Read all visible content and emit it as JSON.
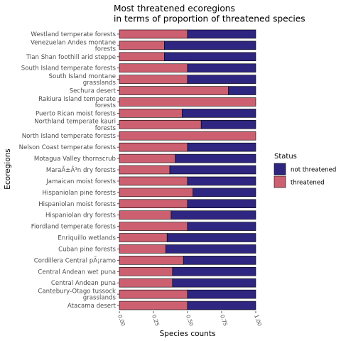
{
  "chart_data": {
    "type": "bar",
    "orientation": "horizontal",
    "stacked": true,
    "title": "Most threatened ecoregions\nin terms of proportion of threatened species",
    "xlabel": "Species counts",
    "ylabel": "Ecoregions",
    "xlim": [
      0,
      1
    ],
    "xticks": [
      "0.00",
      "0.25",
      "0.50",
      "0.75",
      "1.00"
    ],
    "grid": false,
    "legend": {
      "title": "Status",
      "placement": "right"
    },
    "categories": [
      "Westland temperate forests",
      "Venezuelan Andes montane\nforests",
      "Tian Shan foothill arid steppe",
      "South Island temperate forests",
      "South Island montane\ngrasslands",
      "Sechura desert",
      "Rakiura Island temperate\nforests",
      "Puerto Rican moist forests",
      "Northland temperate kauri\nforests",
      "North Island temperate forests",
      "Nelson Coast temperate forests",
      "Motagua Valley thornscrub",
      "MaraÃ±Ã³n dry forests",
      "Jamaican moist forests",
      "Hispaniolan pine forests",
      "Hispaniolan moist forests",
      "Hispaniolan dry forests",
      "Fiordland temperate forests",
      "Enriquillo wetlands",
      "Cuban pine forests",
      "Cordillera Central pÃ¡ramo",
      "Central Andean wet puna",
      "Central Andean puna",
      "Cantebury-Otago tussock\ngrasslands",
      "Atacama desert"
    ],
    "series": [
      {
        "name": "threatened",
        "color": "#cd6070",
        "values": [
          0.5,
          0.33,
          0.33,
          0.5,
          0.5,
          0.8,
          1.0,
          0.46,
          0.6,
          1.0,
          0.5,
          0.41,
          0.37,
          0.5,
          0.54,
          0.5,
          0.38,
          0.5,
          0.35,
          0.34,
          0.47,
          0.39,
          0.39,
          0.5,
          0.5
        ]
      },
      {
        "name": "not threatened",
        "color": "#2e2680",
        "values": [
          0.5,
          0.67,
          0.67,
          0.5,
          0.5,
          0.2,
          0.0,
          0.54,
          0.4,
          0.0,
          0.5,
          0.59,
          0.63,
          0.5,
          0.46,
          0.5,
          0.62,
          0.5,
          0.65,
          0.66,
          0.53,
          0.61,
          0.61,
          0.5,
          0.5
        ]
      }
    ]
  }
}
